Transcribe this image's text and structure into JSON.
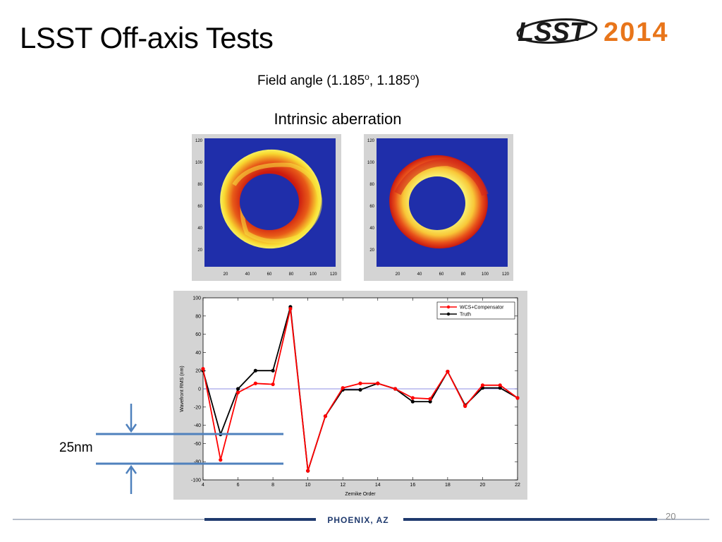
{
  "slide": {
    "title": "LSST Off-axis Tests",
    "field_angle_prefix": "Field angle (1.185",
    "degree_mark": "o",
    "field_angle_sep": ", 1.185",
    "field_angle_suffix": ")",
    "aberration_title": "Intrinsic aberration",
    "annotation_label": "25nm",
    "page_number": "20"
  },
  "logo": {
    "text_left": "LSST",
    "text_right": "2014",
    "color_left": "#1a1a1a",
    "color_right": "#e8751a"
  },
  "footer": {
    "location": "PHOENIX, AZ",
    "color": "#1f3a6e"
  },
  "maps": {
    "ticks": [
      "20",
      "40",
      "60",
      "80",
      "100",
      "120"
    ],
    "background_color": "#1f2eaa",
    "colormap": "jet"
  },
  "chart_data": {
    "type": "line",
    "xlabel": "Zernike Order",
    "ylabel": "Wavefront RMS (nm)",
    "xlim": [
      4,
      22
    ],
    "ylim": [
      -100,
      100
    ],
    "xticks": [
      4,
      6,
      8,
      10,
      12,
      14,
      16,
      18,
      20,
      22
    ],
    "yticks": [
      100,
      80,
      60,
      40,
      20,
      0,
      -20,
      -40,
      -60,
      -80,
      -100
    ],
    "grid": false,
    "legend": "top-right",
    "x": [
      4,
      5,
      6,
      7,
      8,
      9,
      10,
      11,
      12,
      13,
      14,
      15,
      16,
      17,
      18,
      19,
      20,
      21,
      22
    ],
    "series": [
      {
        "name": "WCS+Compensator",
        "color": "#ff0000",
        "values": [
          22,
          -78,
          -4,
          6,
          5,
          88,
          -90,
          -30,
          1,
          6,
          6,
          0,
          -10,
          -11,
          19,
          -19,
          4,
          4,
          -10
        ]
      },
      {
        "name": "Truth",
        "color": "#000000",
        "values": [
          20,
          -50,
          0,
          20,
          20,
          90,
          -90,
          -30,
          -1,
          -1,
          6,
          0,
          -14,
          -14,
          19,
          -18,
          1,
          1,
          -10
        ]
      }
    ],
    "reference_line": {
      "y": 0,
      "color": "#6a6adc"
    }
  }
}
